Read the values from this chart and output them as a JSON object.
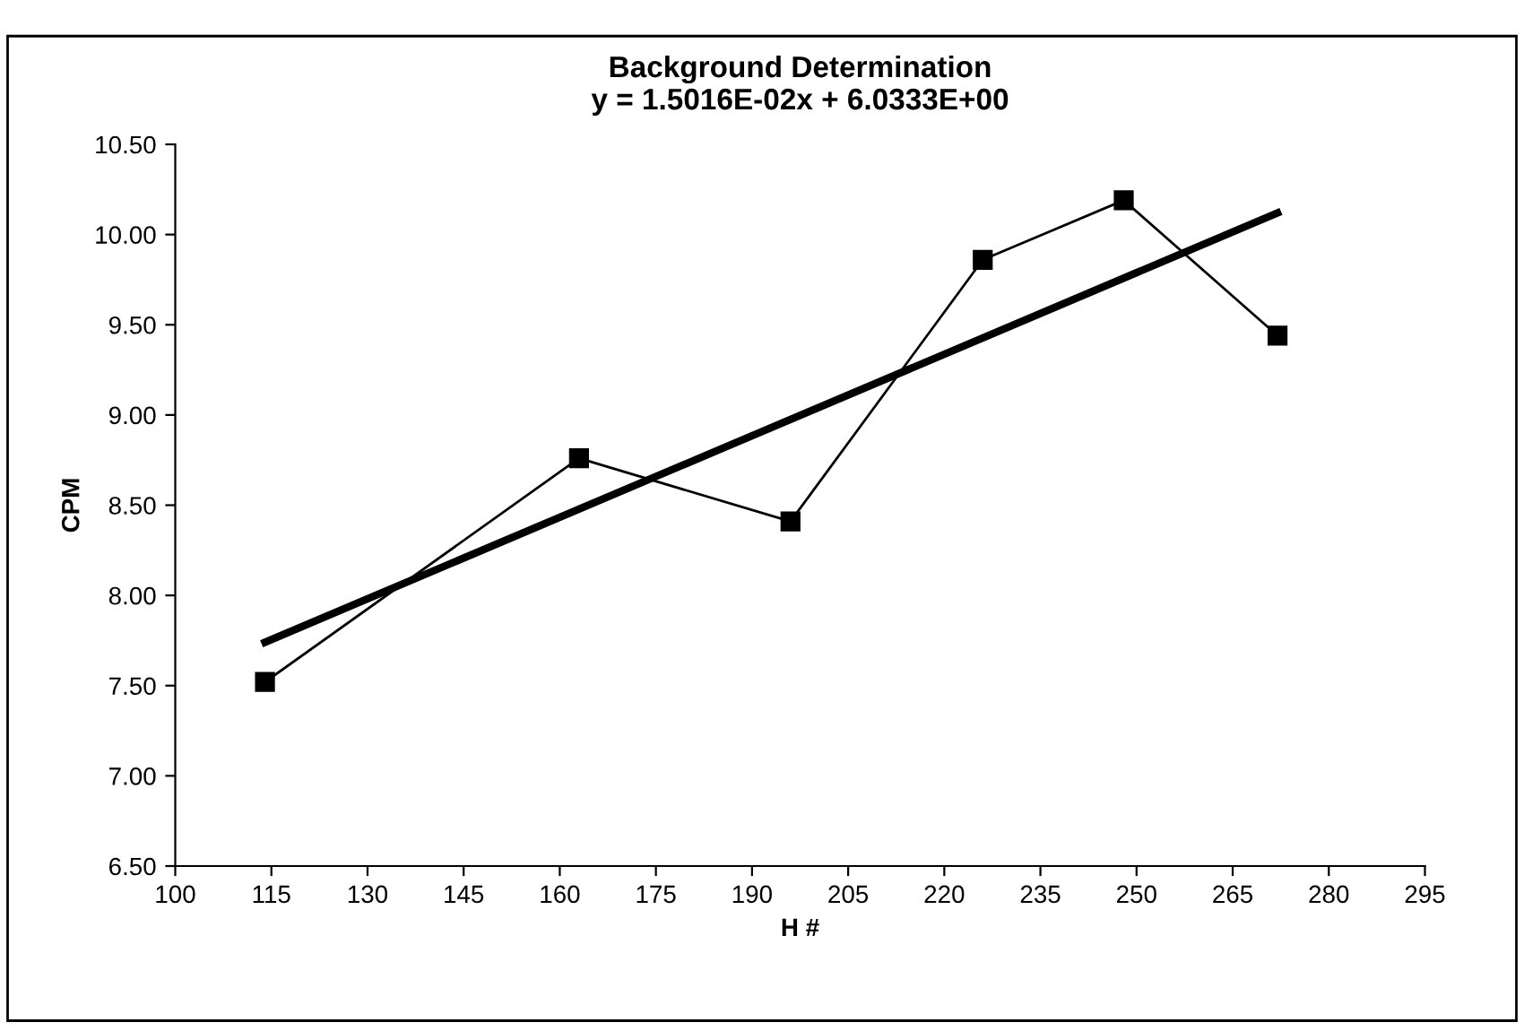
{
  "chart_data": {
    "type": "line",
    "title": "Background Determination\ny = 1.5016E-02x + 6.0333E+00",
    "xlabel": "H #",
    "ylabel": "CPM",
    "xlim": [
      100,
      295
    ],
    "xticks": [
      100,
      115,
      130,
      145,
      160,
      175,
      190,
      205,
      220,
      235,
      250,
      265,
      280,
      295
    ],
    "ylim": [
      6.5,
      10.5
    ],
    "yticks": [
      {
        "value": 6.5,
        "label": "6.50"
      },
      {
        "value": 7,
        "label": "7.00"
      },
      {
        "value": 7.5,
        "label": "7.50"
      },
      {
        "value": 8,
        "label": "8.00"
      },
      {
        "value": 8.5,
        "label": "8.50"
      },
      {
        "value": 9,
        "label": "9.00"
      },
      {
        "value": 9.5,
        "label": "9.50"
      },
      {
        "value": 10,
        "label": "10.00"
      },
      {
        "value": 10.5,
        "label": "10.50"
      }
    ],
    "grid": false,
    "legend": false,
    "series": [
      {
        "color": "#000000",
        "marker": "square",
        "line_style": "solid",
        "x": [
          114,
          163,
          196,
          226,
          248,
          272
        ],
        "values": [
          7.52,
          8.76,
          8.41,
          9.86,
          10.19,
          9.44
        ]
      },
      {
        "color": "#000000",
        "marker": "none",
        "line_style": "solid",
        "x": [
          114,
          272
        ],
        "values": [
          7.74,
          10.12
        ]
      }
    ]
  }
}
